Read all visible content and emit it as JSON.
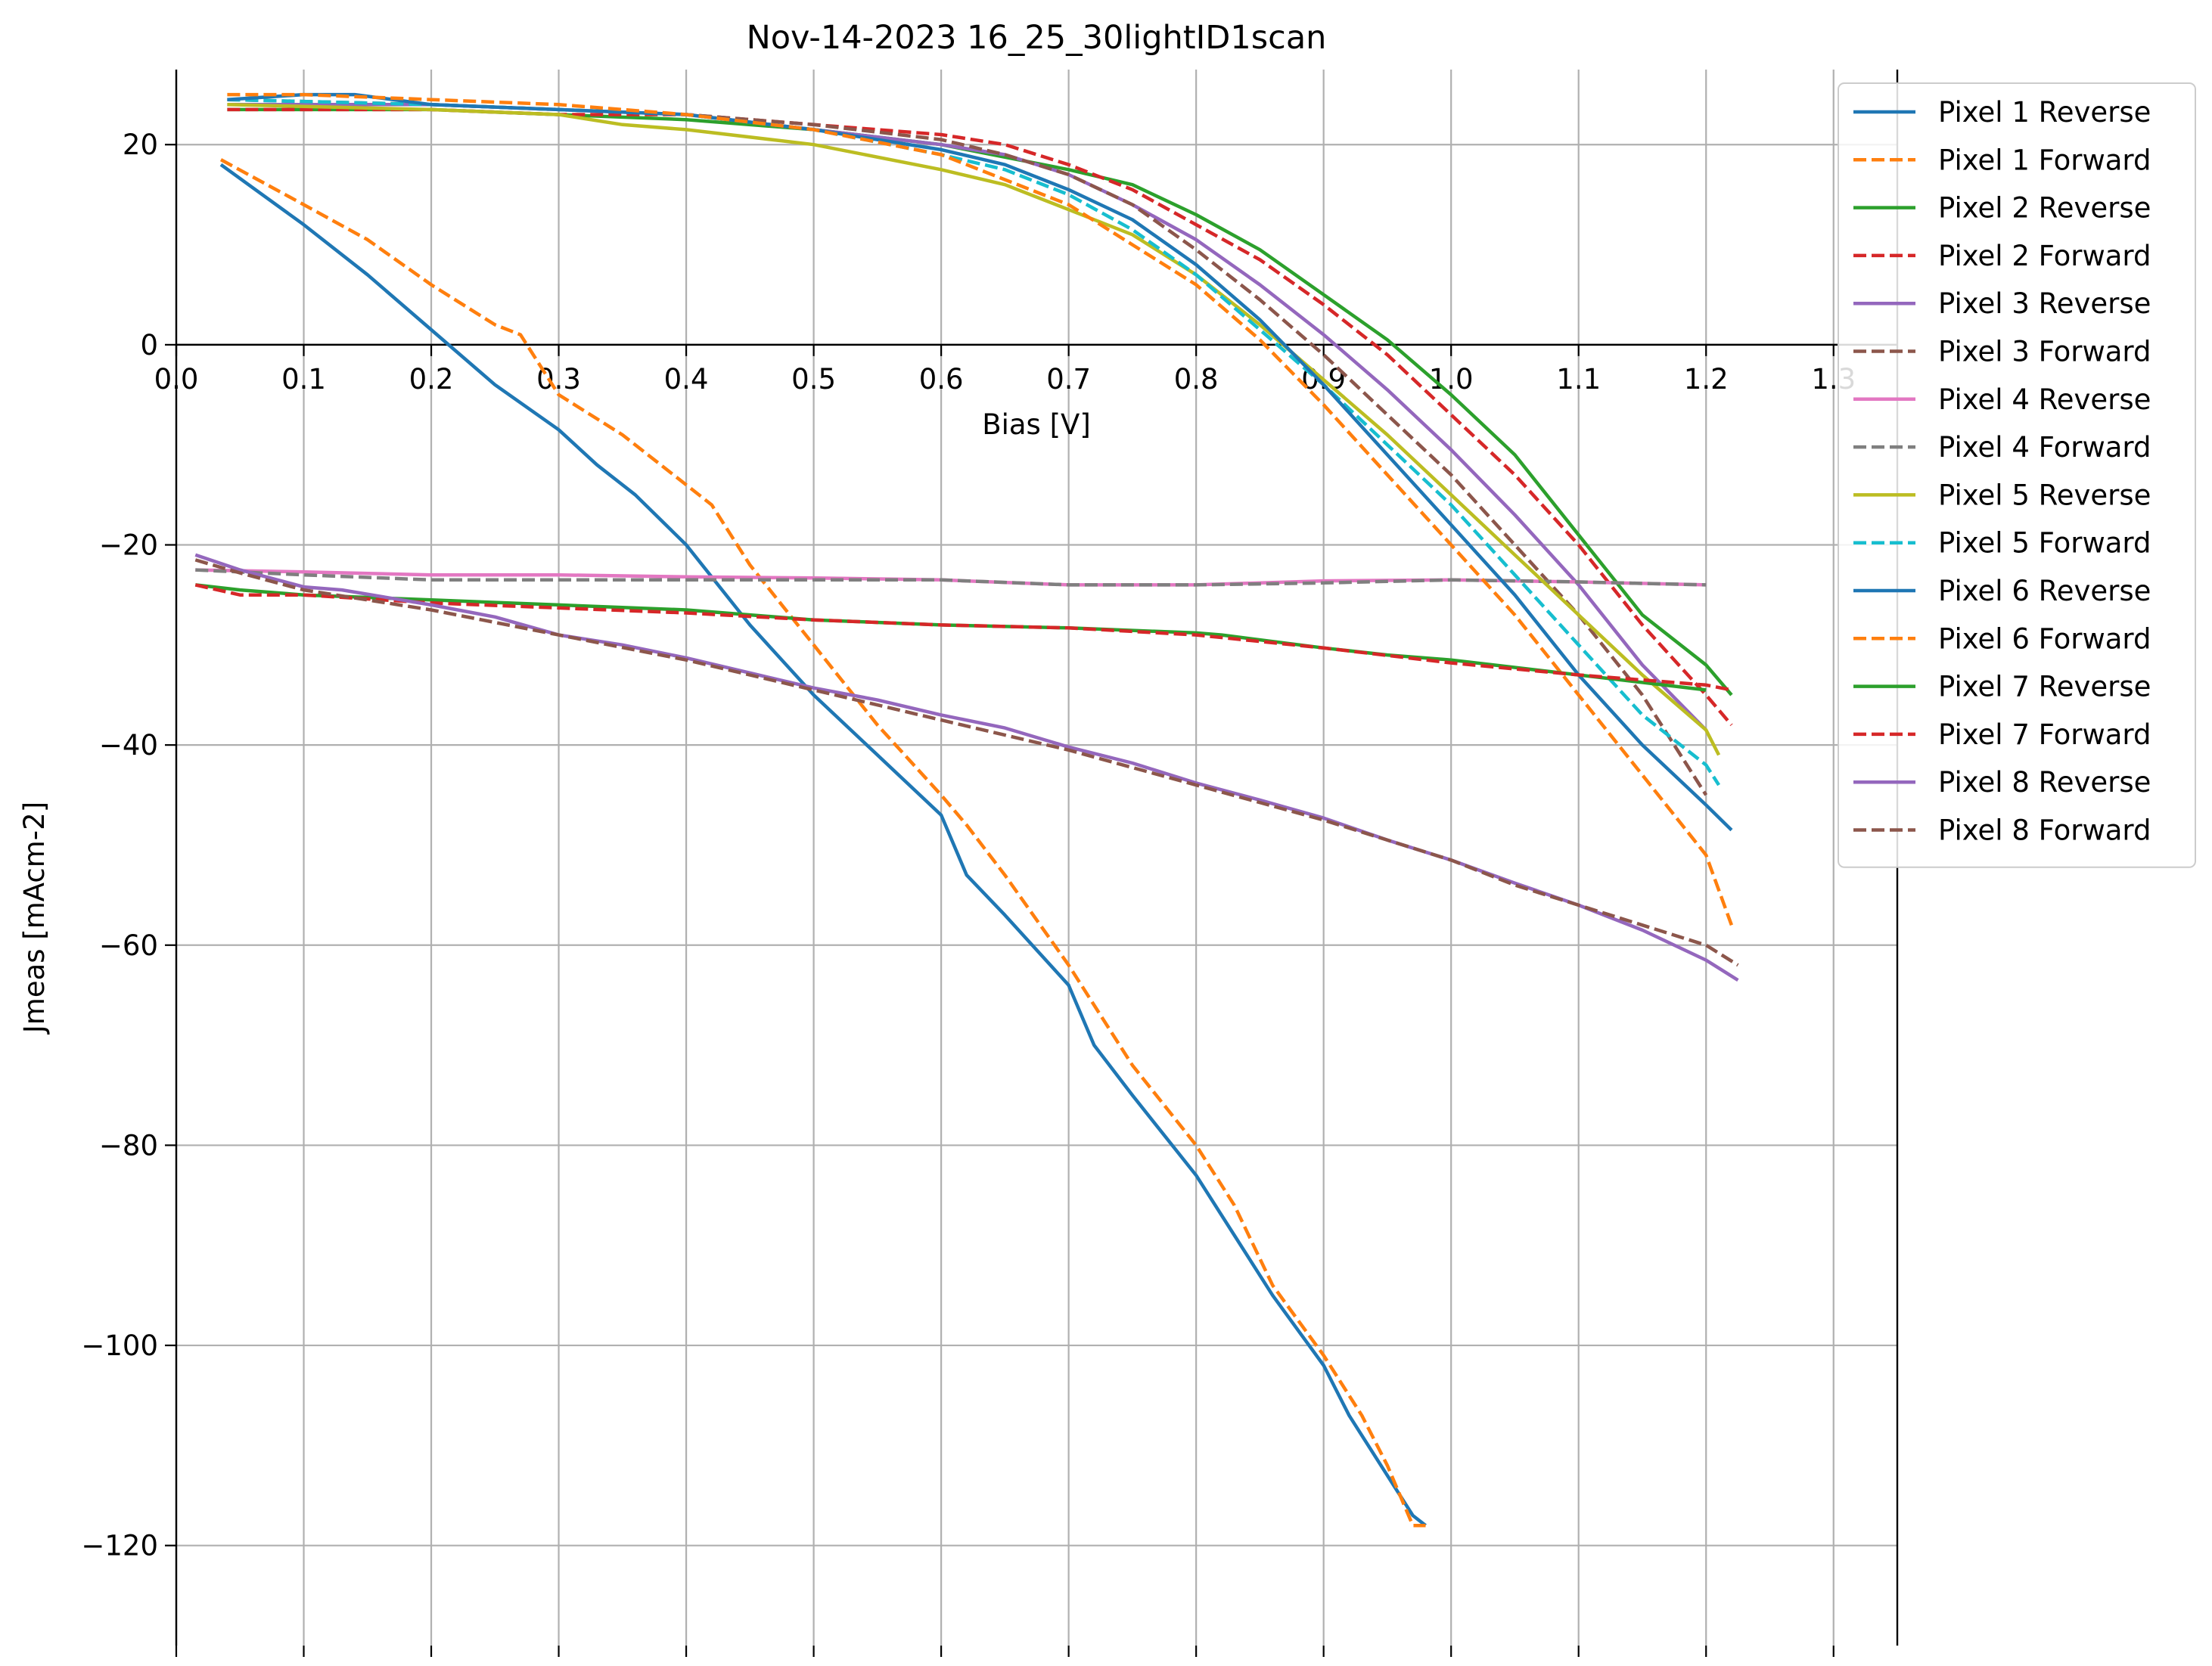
{
  "chart_data": {
    "type": "line",
    "title": "Nov-14-2023 16_25_30lightID1scan",
    "xlabel": "Bias [V]",
    "ylabel": "Jmeas [mAcm-2]",
    "xlim": [
      0.0,
      1.35
    ],
    "ylim": [
      -130,
      27.5
    ],
    "xticks": [
      0.0,
      0.1,
      0.2,
      0.3,
      0.4,
      0.5,
      0.6,
      0.7,
      0.8,
      0.9,
      1.0,
      1.1,
      1.2,
      1.3
    ],
    "xtick_labels": [
      "0.0",
      "0.1",
      "0.2",
      "0.3",
      "0.4",
      "0.5",
      "0.6",
      "0.7",
      "0.8",
      "0.9",
      "1.0",
      "1.1",
      "1.2",
      "1.3"
    ],
    "yticks": [
      20,
      0,
      -20,
      -40,
      -60,
      -80,
      -100,
      -120
    ],
    "ytick_labels": [
      "20",
      "0",
      "−20",
      "−40",
      "−60",
      "−80",
      "−100",
      "−120"
    ],
    "grid": true,
    "legend_position": "upper right, outside plot",
    "series": [
      {
        "name": "Pixel 1 Reverse",
        "color": "#1f77b4",
        "dash": "solid",
        "x": [
          0.035,
          0.1,
          0.15,
          0.2,
          0.25,
          0.3,
          0.33,
          0.36,
          0.4,
          0.45,
          0.5,
          0.55,
          0.6,
          0.62,
          0.65,
          0.7,
          0.72,
          0.75,
          0.8,
          0.83,
          0.86,
          0.9,
          0.92,
          0.95,
          0.97,
          0.98
        ],
        "y": [
          18,
          12,
          7,
          1.5,
          -4,
          -8.5,
          -12,
          -15,
          -20,
          -28,
          -35,
          -41,
          -47,
          -53,
          -57,
          -64,
          -70,
          -75,
          -83,
          -89,
          -95,
          -102,
          -107,
          -113,
          -117,
          -118
        ]
      },
      {
        "name": "Pixel 1 Forward",
        "color": "#ff7f0e",
        "dash": "dashed",
        "x": [
          0.035,
          0.1,
          0.15,
          0.2,
          0.25,
          0.27,
          0.3,
          0.35,
          0.4,
          0.42,
          0.45,
          0.5,
          0.55,
          0.6,
          0.62,
          0.65,
          0.7,
          0.75,
          0.8,
          0.83,
          0.86,
          0.9,
          0.93,
          0.95,
          0.97,
          0.98
        ],
        "y": [
          18.5,
          14,
          10.5,
          6,
          2,
          1,
          -5,
          -9,
          -14,
          -16,
          -22,
          -30,
          -38,
          -45,
          -48,
          -53,
          -62,
          -72,
          -80,
          -86,
          -94,
          -101,
          -107,
          -112,
          -118,
          -118
        ]
      },
      {
        "name": "Pixel 2 Reverse",
        "color": "#2ca02c",
        "dash": "solid",
        "x": [
          0.04,
          0.2,
          0.4,
          0.5,
          0.6,
          0.7,
          0.75,
          0.8,
          0.85,
          0.9,
          0.95,
          1.0,
          1.05,
          1.1,
          1.15,
          1.2,
          1.22
        ],
        "y": [
          23.5,
          23.5,
          22.5,
          21.5,
          20,
          17.5,
          16,
          13,
          9.5,
          5,
          0.5,
          -5,
          -11,
          -19,
          -27,
          -32,
          -35
        ]
      },
      {
        "name": "Pixel 2 Forward",
        "color": "#d62728",
        "dash": "dashed",
        "x": [
          0.04,
          0.2,
          0.3,
          0.4,
          0.5,
          0.6,
          0.65,
          0.7,
          0.75,
          0.8,
          0.85,
          0.9,
          0.95,
          1.0,
          1.05,
          1.1,
          1.15,
          1.2,
          1.22
        ],
        "y": [
          23.5,
          23.5,
          23,
          23,
          22,
          21,
          20,
          18,
          15.5,
          12,
          8.5,
          4,
          -1,
          -7,
          -13,
          -20,
          -28,
          -35,
          -38
        ]
      },
      {
        "name": "Pixel 3 Reverse",
        "color": "#9467bd",
        "dash": "solid",
        "x": [
          0.04,
          0.2,
          0.4,
          0.5,
          0.6,
          0.65,
          0.7,
          0.75,
          0.8,
          0.85,
          0.9,
          0.95,
          1.0,
          1.05,
          1.1,
          1.15,
          1.2
        ],
        "y": [
          24,
          24,
          23,
          21.5,
          20,
          19,
          17,
          14,
          10.5,
          6,
          1,
          -4.5,
          -10.5,
          -17,
          -24,
          -32,
          -38.5
        ]
      },
      {
        "name": "Pixel 3 Forward",
        "color": "#8c564b",
        "dash": "dashed",
        "x": [
          0.04,
          0.2,
          0.3,
          0.4,
          0.5,
          0.6,
          0.65,
          0.7,
          0.75,
          0.8,
          0.85,
          0.9,
          0.95,
          1.0,
          1.05,
          1.1,
          1.15,
          1.2
        ],
        "y": [
          24.5,
          24,
          23.5,
          23,
          22,
          20.5,
          19,
          17,
          14,
          9.5,
          4.5,
          -1,
          -7,
          -13,
          -20,
          -27,
          -35,
          -45
        ]
      },
      {
        "name": "Pixel 4 Reverse",
        "color": "#e377c2",
        "dash": "solid",
        "x": [
          0.015,
          0.1,
          0.2,
          0.3,
          0.4,
          0.5,
          0.6,
          0.7,
          0.8,
          0.9,
          1.0,
          1.1,
          1.2
        ],
        "y": [
          -22.5,
          -22.7,
          -23,
          -23,
          -23.2,
          -23.3,
          -23.5,
          -24,
          -24,
          -23.6,
          -23.5,
          -23.7,
          -24
        ]
      },
      {
        "name": "Pixel 4 Forward",
        "color": "#7f7f7f",
        "dash": "dashed",
        "x": [
          0.015,
          0.1,
          0.2,
          0.3,
          0.4,
          0.5,
          0.6,
          0.7,
          0.8,
          0.9,
          1.0,
          1.1,
          1.2
        ],
        "y": [
          -22.5,
          -23,
          -23.5,
          -23.5,
          -23.5,
          -23.5,
          -23.5,
          -24,
          -24,
          -23.8,
          -23.5,
          -23.7,
          -24
        ]
      },
      {
        "name": "Pixel 5 Reverse",
        "color": "#bcbd22",
        "dash": "solid",
        "x": [
          0.04,
          0.2,
          0.3,
          0.35,
          0.4,
          0.5,
          0.6,
          0.65,
          0.7,
          0.75,
          0.8,
          0.85,
          0.9,
          0.95,
          1.0,
          1.05,
          1.1,
          1.15,
          1.2,
          1.21
        ],
        "y": [
          24,
          23.5,
          23,
          22,
          21.5,
          20,
          17.5,
          16,
          13.5,
          11,
          7,
          2,
          -3.5,
          -9,
          -15,
          -21,
          -27,
          -33,
          -38.5,
          -41
        ]
      },
      {
        "name": "Pixel 5 Forward",
        "color": "#17becf",
        "dash": "dashed",
        "x": [
          0.04,
          0.2,
          0.4,
          0.5,
          0.6,
          0.65,
          0.7,
          0.75,
          0.8,
          0.85,
          0.9,
          0.95,
          1.0,
          1.05,
          1.1,
          1.15,
          1.2,
          1.21
        ],
        "y": [
          24.5,
          24,
          23,
          21.5,
          19,
          17.5,
          15,
          11.5,
          7,
          1.5,
          -4,
          -10,
          -16,
          -23,
          -30,
          -37,
          -42,
          -44
        ]
      },
      {
        "name": "Pixel 6 Reverse",
        "color": "#1f77b4",
        "dash": "solid",
        "x": [
          0.04,
          0.1,
          0.14,
          0.2,
          0.3,
          0.4,
          0.5,
          0.55,
          0.6,
          0.65,
          0.7,
          0.75,
          0.8,
          0.85,
          0.9,
          0.95,
          1.0,
          1.05,
          1.1,
          1.15,
          1.2,
          1.22
        ],
        "y": [
          24.5,
          25,
          25,
          24,
          23.5,
          23,
          21.5,
          20.5,
          19.5,
          18,
          15.5,
          12.5,
          8,
          2.5,
          -4,
          -11,
          -18,
          -25,
          -33,
          -40,
          -46,
          -48.5
        ]
      },
      {
        "name": "Pixel 6 Forward",
        "color": "#ff7f0e",
        "dash": "dashed",
        "x": [
          0.04,
          0.1,
          0.2,
          0.3,
          0.4,
          0.5,
          0.6,
          0.7,
          0.75,
          0.8,
          0.85,
          0.9,
          0.95,
          1.0,
          1.05,
          1.1,
          1.15,
          1.2,
          1.22
        ],
        "y": [
          25,
          25,
          24.5,
          24,
          23,
          21.5,
          19,
          14,
          10,
          6,
          0.5,
          -6,
          -13,
          -20,
          -27,
          -35,
          -43,
          -51,
          -58
        ]
      },
      {
        "name": "Pixel 7 Reverse",
        "color": "#2ca02c",
        "dash": "solid",
        "x": [
          0.015,
          0.05,
          0.1,
          0.2,
          0.3,
          0.4,
          0.5,
          0.6,
          0.7,
          0.8,
          0.82,
          0.9,
          0.95,
          1.0,
          1.1,
          1.2
        ],
        "y": [
          -24,
          -24.5,
          -25,
          -25.5,
          -26,
          -26.5,
          -27.5,
          -28,
          -28.3,
          -28.8,
          -29,
          -30.3,
          -31,
          -31.5,
          -33,
          -34.5
        ]
      },
      {
        "name": "Pixel 7 Forward",
        "color": "#d62728",
        "dash": "dashed",
        "x": [
          0.015,
          0.05,
          0.1,
          0.2,
          0.3,
          0.4,
          0.5,
          0.6,
          0.7,
          0.8,
          0.9,
          1.0,
          1.1,
          1.2,
          1.22
        ],
        "y": [
          -24,
          -25,
          -25,
          -25.8,
          -26.3,
          -26.8,
          -27.5,
          -28,
          -28.3,
          -29,
          -30.3,
          -31.8,
          -33,
          -34,
          -34.5
        ]
      },
      {
        "name": "Pixel 8 Reverse",
        "color": "#9467bd",
        "dash": "solid",
        "x": [
          0.015,
          0.05,
          0.1,
          0.13,
          0.2,
          0.25,
          0.3,
          0.35,
          0.4,
          0.5,
          0.55,
          0.6,
          0.65,
          0.7,
          0.75,
          0.8,
          0.85,
          0.9,
          0.95,
          1.0,
          1.05,
          1.1,
          1.15,
          1.2,
          1.225
        ],
        "y": [
          -21,
          -22.5,
          -24.2,
          -24.5,
          -26,
          -27.2,
          -29,
          -30,
          -31.3,
          -34.3,
          -35.5,
          -37,
          -38.3,
          -40.2,
          -41.8,
          -43.8,
          -45.5,
          -47.3,
          -49.5,
          -51.5,
          -53.8,
          -56,
          -58.5,
          -61.5,
          -63.5
        ]
      },
      {
        "name": "Pixel 8 Forward",
        "color": "#8c564b",
        "dash": "dashed",
        "x": [
          0.015,
          0.05,
          0.1,
          0.2,
          0.3,
          0.4,
          0.5,
          0.55,
          0.6,
          0.7,
          0.8,
          0.9,
          1.0,
          1.05,
          1.1,
          1.15,
          1.2,
          1.225
        ],
        "y": [
          -21.5,
          -22.8,
          -24.5,
          -26.5,
          -29,
          -31.5,
          -34.5,
          -36,
          -37.5,
          -40.5,
          -44,
          -47.5,
          -51.5,
          -54,
          -56,
          -58,
          -60,
          -62
        ]
      }
    ]
  }
}
